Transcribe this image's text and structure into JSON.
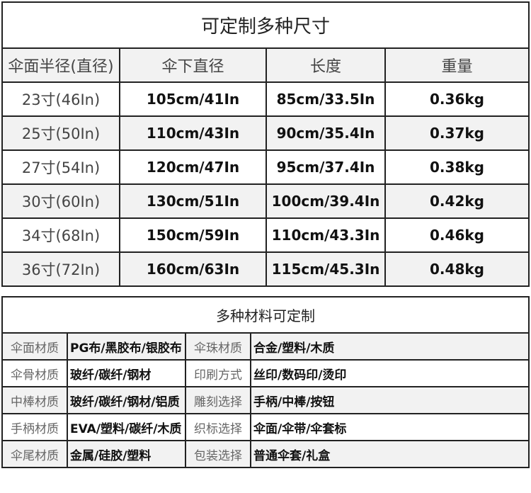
{
  "sizes": {
    "title": "可定制多种尺寸",
    "headers": [
      "伞面半径(直径)",
      "伞下直径",
      "长度",
      "重量"
    ],
    "rows": [
      [
        "23寸(46In)",
        "105cm/41In",
        "85cm/33.5In",
        "0.36kg"
      ],
      [
        "25寸(50In)",
        "110cm/43In",
        "90cm/35.4In",
        "0.37kg"
      ],
      [
        "27寸(54In)",
        "120cm/47In",
        "95cm/37.4In",
        "0.38kg"
      ],
      [
        "30寸(60In)",
        "130cm/51In",
        "100cm/39.4In",
        "0.42kg"
      ],
      [
        "34寸(68In)",
        "150cm/59In",
        "110cm/43.3In",
        "0.46kg"
      ],
      [
        "36寸(72In)",
        "160cm/63In",
        "115cm/45.3In",
        "0.48kg"
      ]
    ]
  },
  "materials": {
    "title": "多种材料可定制",
    "rows": [
      [
        "伞面材质",
        "PG布/黑胶布/银胶布",
        "伞珠材质",
        "合金/塑料/木质"
      ],
      [
        "伞骨材质",
        "玻纤/碳纤/钢材",
        "印刷方式",
        "丝印/数码印/烫印"
      ],
      [
        "中棒材质",
        "玻纤/碳纤/钢材/铝质",
        "雕刻选择",
        "手柄/中棒/按钮"
      ],
      [
        "手柄材质",
        "EVA/塑料/碳纤/木质",
        "织标选择",
        "伞面/伞带/伞套标"
      ],
      [
        "伞尾材质",
        "金属/硅胶/塑料",
        "包装选择",
        "普通伞套/礼盒"
      ]
    ]
  }
}
